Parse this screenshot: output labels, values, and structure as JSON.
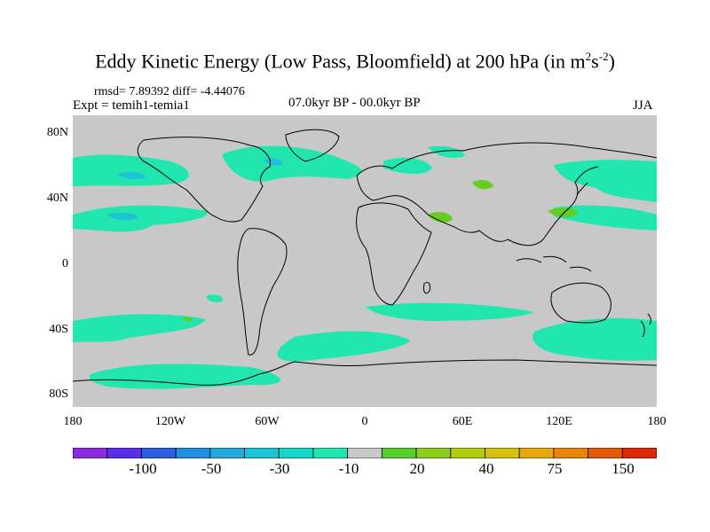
{
  "title": {
    "main": "Eddy Kinetic Energy (Low Pass, Bloomfield) at 200 hPa (in m",
    "sup1": "2",
    "mid": "s",
    "sup2": "-2",
    "end": ")"
  },
  "stats": "rmsd= 7.89392 diff= -4.44076",
  "expt": "Expt = temih1-temia1",
  "period": "07.0kyr BP - 00.0kyr BP",
  "season": "JJA",
  "lat_labels": [
    "80N",
    "40N",
    "0",
    "40S",
    "80S"
  ],
  "lon_labels": [
    "180",
    "120W",
    "60W",
    "0",
    "60E",
    "120E",
    "180"
  ],
  "colorbar": {
    "labels": [
      "-100",
      "-50",
      "-30",
      "-10",
      "20",
      "40",
      "75",
      "150"
    ],
    "colors": [
      "#8a2be2",
      "#5a2ee8",
      "#2d5ee0",
      "#1f8fe0",
      "#22aadf",
      "#1ec3d6",
      "#16d7c8",
      "#22e6b0",
      "#c8c8c8",
      "#55d02a",
      "#8ccd1e",
      "#b2cc10",
      "#d6c010",
      "#e6a80c",
      "#e8850a",
      "#e45a08",
      "#dd2a06"
    ]
  },
  "colors": {
    "land_sea_bg": "#c8c8c8",
    "negative_fill": "#22e6b0",
    "negative_dark": "#1ec3d6",
    "positive_fill": "#66cc22"
  }
}
